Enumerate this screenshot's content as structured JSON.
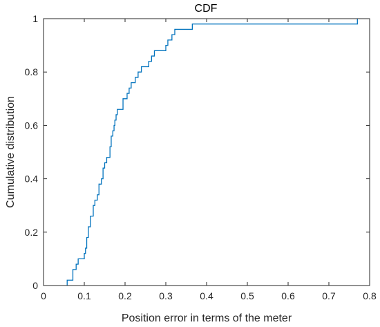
{
  "chart_data": {
    "type": "line",
    "title": "CDF",
    "xlabel": "Position error in terms of the meter",
    "ylabel": "Cumulative distribution",
    "xlim": [
      0,
      0.8
    ],
    "ylim": [
      0,
      1
    ],
    "xticks": [
      0,
      0.1,
      0.2,
      0.3,
      0.4,
      0.5,
      0.6,
      0.7,
      0.8
    ],
    "yticks": [
      0,
      0.2,
      0.4,
      0.6,
      0.8,
      1
    ],
    "xtick_labels": [
      "0",
      "0.1",
      "0.2",
      "0.3",
      "0.4",
      "0.5",
      "0.6",
      "0.7",
      "0.8"
    ],
    "ytick_labels": [
      "0",
      "0.2",
      "0.4",
      "0.6",
      "0.8",
      "1"
    ],
    "grid": false,
    "line_color": "#0072BD",
    "series": [
      {
        "step": "post",
        "x": [
          0.058,
          0.072,
          0.08,
          0.085,
          0.1,
          0.103,
          0.106,
          0.11,
          0.115,
          0.122,
          0.126,
          0.132,
          0.136,
          0.142,
          0.146,
          0.15,
          0.155,
          0.163,
          0.166,
          0.17,
          0.173,
          0.175,
          0.178,
          0.181,
          0.185,
          0.188,
          0.195,
          0.205,
          0.21,
          0.215,
          0.225,
          0.232,
          0.24,
          0.245,
          0.25,
          0.258,
          0.265,
          0.272,
          0.295,
          0.3,
          0.305,
          0.315,
          0.322,
          0.328,
          0.34,
          0.365,
          0.77
        ],
        "y": [
          0.02,
          0.06,
          0.08,
          0.1,
          0.12,
          0.14,
          0.18,
          0.22,
          0.26,
          0.3,
          0.32,
          0.34,
          0.38,
          0.4,
          0.44,
          0.46,
          0.48,
          0.52,
          0.56,
          0.58,
          0.6,
          0.62,
          0.64,
          0.66,
          0.66,
          0.66,
          0.7,
          0.72,
          0.74,
          0.76,
          0.78,
          0.8,
          0.82,
          0.82,
          0.82,
          0.84,
          0.86,
          0.88,
          0.88,
          0.9,
          0.92,
          0.94,
          0.96,
          0.96,
          0.96,
          0.98,
          1.0
        ]
      }
    ]
  }
}
